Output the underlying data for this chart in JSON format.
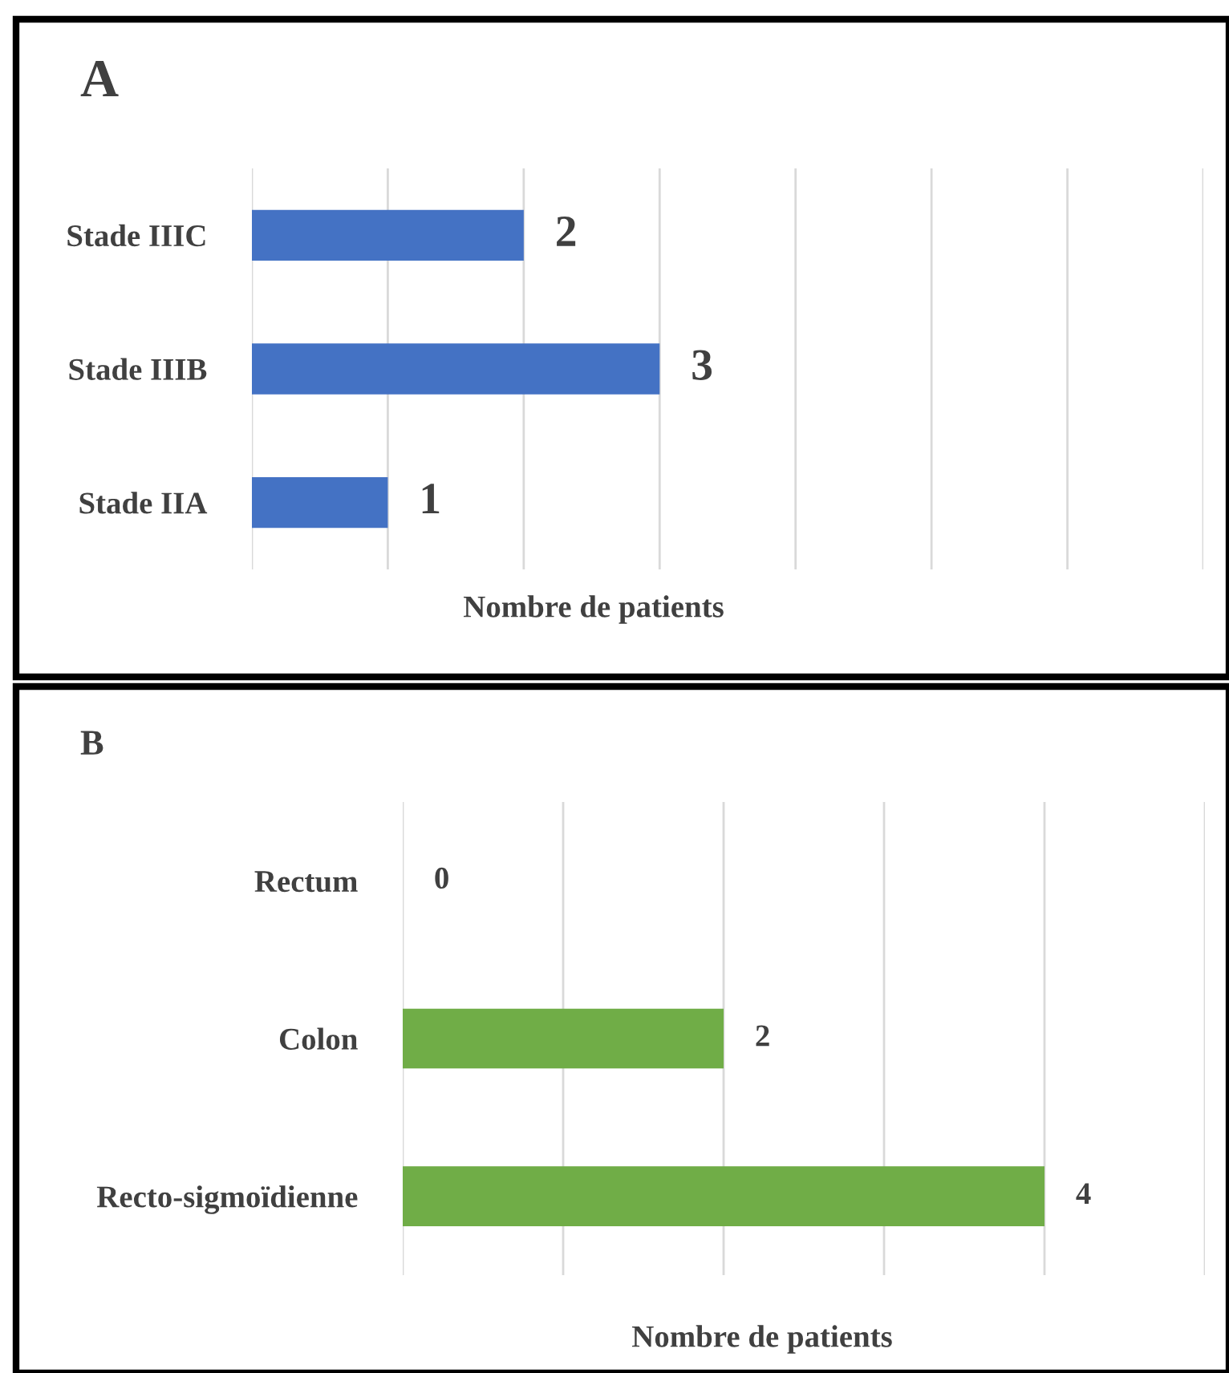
{
  "chart_data": [
    {
      "type": "bar",
      "orientation": "horizontal",
      "title": "A",
      "xlabel": "Nombre de patients",
      "categories": [
        "Stade IIIC",
        "Stade IIIB",
        "Stade IIA"
      ],
      "values": [
        2,
        3,
        1
      ],
      "color": "#4472c4",
      "data_labels": true,
      "grid": "x",
      "tick_labels": "y",
      "legend": false,
      "xlim": [
        0,
        7
      ],
      "xticks": [
        {
          "value": 0,
          "label": null
        },
        {
          "value": 1,
          "label": null
        },
        {
          "value": 2,
          "label": null
        },
        {
          "value": 3,
          "label": null
        },
        {
          "value": 4,
          "label": null
        },
        {
          "value": 5,
          "label": null
        },
        {
          "value": 6,
          "label": null
        },
        {
          "value": 7,
          "label": null
        }
      ]
    },
    {
      "type": "bar",
      "orientation": "horizontal",
      "title": "B",
      "xlabel": "Nombre de patients",
      "categories": [
        "Rectum",
        "Colon",
        "Recto-sigmoïdienne"
      ],
      "values": [
        0,
        2,
        4
      ],
      "color": "#70ad47",
      "data_labels": true,
      "grid": "x",
      "tick_labels": "y",
      "legend": false,
      "xlim": [
        0,
        5
      ],
      "xticks": [
        {
          "value": 0,
          "label": null
        },
        {
          "value": 1,
          "label": null
        },
        {
          "value": 2,
          "label": null
        },
        {
          "value": 3,
          "label": null
        },
        {
          "value": 4,
          "label": null
        },
        {
          "value": 5,
          "label": null
        }
      ]
    }
  ]
}
